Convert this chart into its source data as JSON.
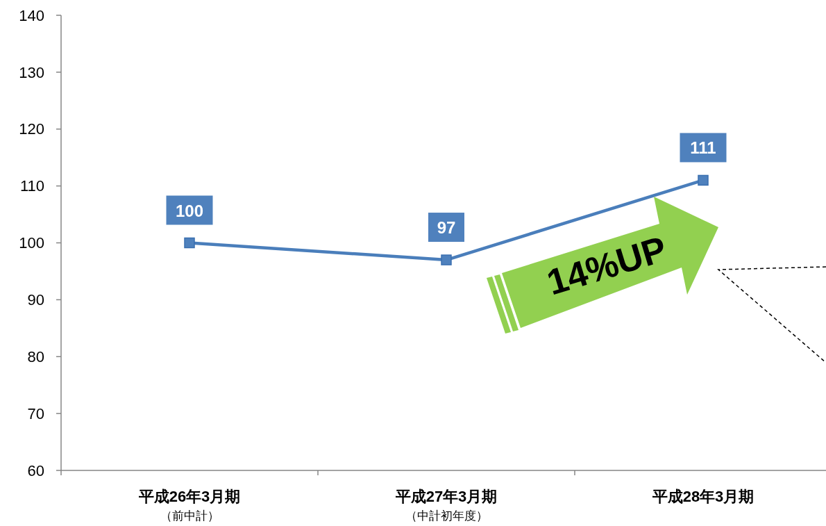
{
  "chart_data": {
    "type": "line",
    "categories": [
      "平成26年3月期（前中計）",
      "平成27年3月期（中計初年度）",
      "平成28年3月期"
    ],
    "series": [
      {
        "color": "#4a7ebb",
        "values": [
          100,
          97,
          111
        ]
      }
    ],
    "ylim": [
      60,
      140
    ],
    "yticks": [
      60,
      70,
      80,
      90,
      100,
      110,
      120,
      130,
      140
    ],
    "grid": false,
    "marker": "square",
    "line_style": "solid",
    "data_labels": true,
    "annotations": [
      "14%UP"
    ]
  }
}
